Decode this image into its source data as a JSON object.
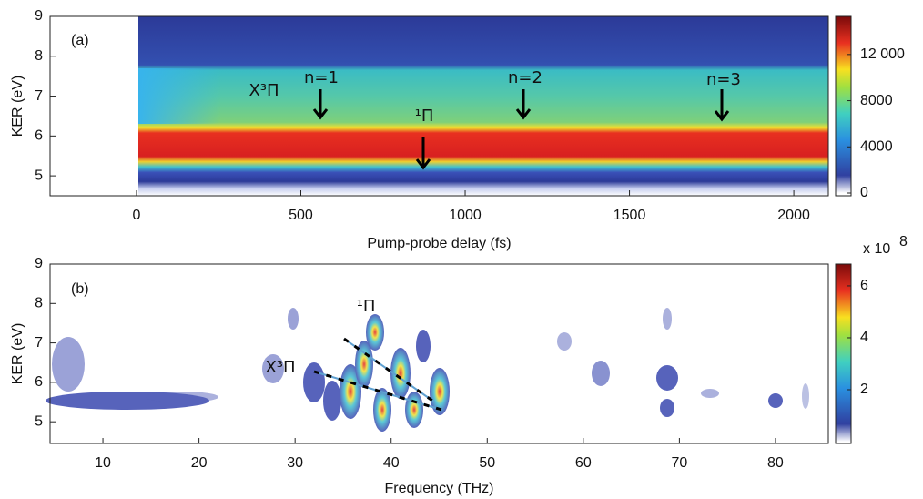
{
  "chart_data": [
    {
      "type": "heatmap",
      "panel_label": "(a)",
      "x_label": "Pump-probe delay (fs)",
      "y_label": "KER (eV)",
      "xlim": [
        -263,
        2105
      ],
      "ylim": [
        4.5,
        9
      ],
      "xticks": [
        0,
        500,
        1000,
        1500,
        2000
      ],
      "yticks": [
        5,
        6,
        7,
        8,
        9
      ],
      "colorbar": {
        "lim": [
          0,
          15300
        ],
        "ticks": [
          0,
          4000,
          8000,
          {
            "value": 12000,
            "label": "12 000"
          }
        ]
      },
      "annotations": [
        "X³Π",
        "n=1",
        "¹Π",
        "n=2",
        "n=3"
      ]
    },
    {
      "type": "heatmap",
      "panel_label": "(b)",
      "x_label": "Frequency (THz)",
      "y_label": "KER (eV)",
      "xlim": [
        4.5,
        85.5
      ],
      "ylim": [
        4.45,
        9
      ],
      "xticks": [
        10,
        20,
        30,
        40,
        50,
        60,
        70,
        80
      ],
      "yticks": [
        5,
        6,
        7,
        8,
        9
      ],
      "colorbar": {
        "lim": [
          0,
          6.84
        ],
        "ticks": [
          2,
          4,
          6
        ],
        "multiplier": "x 10",
        "exponent": "8"
      },
      "annotations": [
        "¹Π",
        "X³Π"
      ]
    }
  ]
}
